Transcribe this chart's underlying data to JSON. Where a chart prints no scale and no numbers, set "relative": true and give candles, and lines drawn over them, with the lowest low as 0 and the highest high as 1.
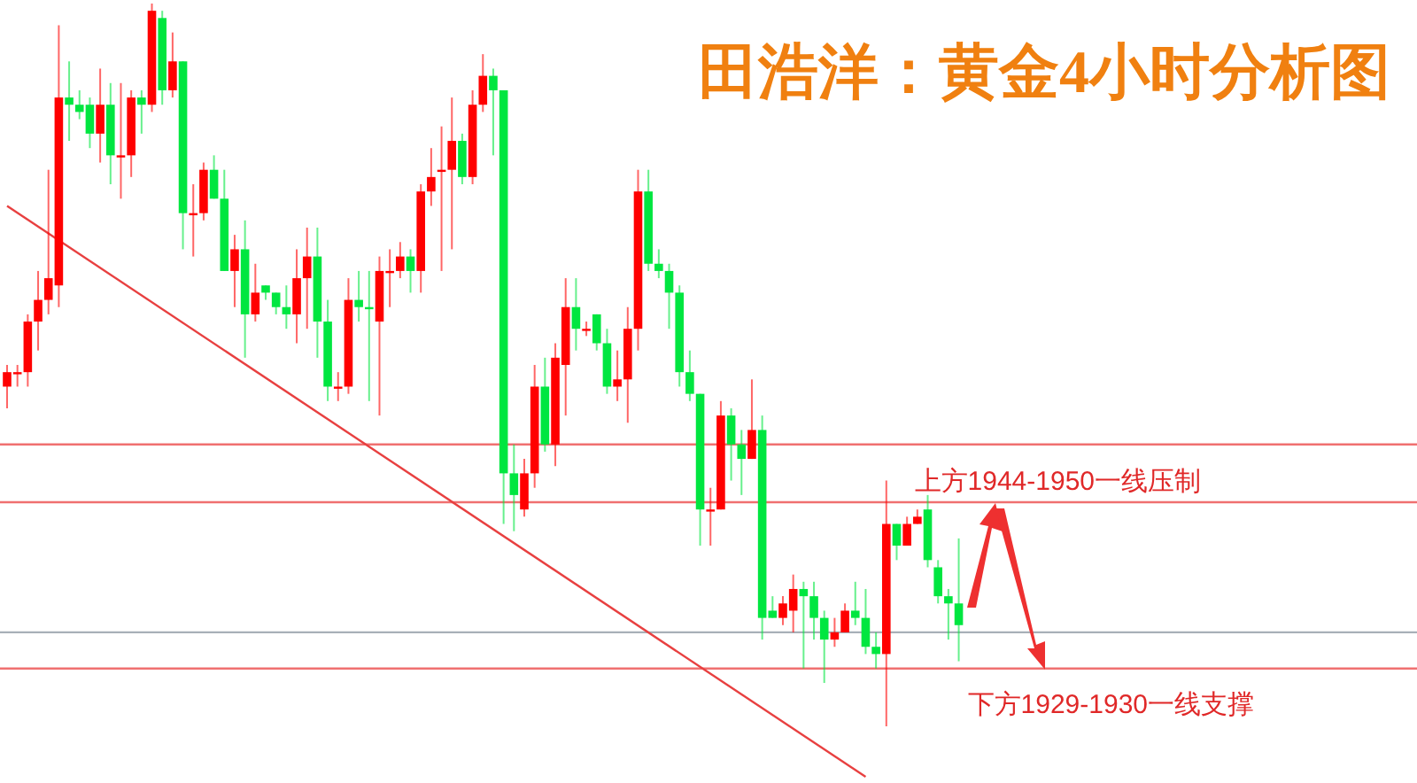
{
  "chart_data": {
    "type": "candlestick",
    "title": "田浩洋：黄金4小时分析图",
    "relative": true,
    "categories": [
      null,
      null,
      null,
      null,
      null,
      null,
      null,
      null,
      null,
      null,
      null,
      null,
      null,
      null,
      null,
      null,
      null,
      null,
      null,
      null,
      null,
      null,
      null,
      null,
      null,
      null,
      null,
      null,
      null,
      null,
      null,
      null,
      null,
      null,
      null,
      null,
      null,
      null,
      null,
      null,
      null,
      null,
      null,
      null,
      null,
      null,
      null,
      null,
      null,
      null,
      null,
      null,
      null,
      null,
      null,
      null,
      null,
      null,
      null,
      null,
      null,
      null,
      null,
      null,
      null,
      null,
      null,
      null,
      null,
      null,
      null,
      null,
      null,
      null,
      null,
      null,
      null,
      null,
      null,
      null,
      null,
      null,
      null,
      null,
      null,
      null,
      null,
      null,
      null,
      null,
      null,
      null,
      null
    ],
    "ohlc": [
      [
        0.47,
        0.5,
        0.44,
        0.49
      ],
      [
        0.49,
        0.5,
        0.47,
        0.49
      ],
      [
        0.49,
        0.57,
        0.47,
        0.56
      ],
      [
        0.56,
        0.63,
        0.52,
        0.59
      ],
      [
        0.59,
        0.77,
        0.57,
        0.62
      ],
      [
        0.61,
        0.97,
        0.58,
        0.87
      ],
      [
        0.87,
        0.92,
        0.81,
        0.86
      ],
      [
        0.86,
        0.88,
        0.84,
        0.85
      ],
      [
        0.86,
        0.87,
        0.8,
        0.82
      ],
      [
        0.82,
        0.91,
        0.78,
        0.86
      ],
      [
        0.86,
        0.89,
        0.75,
        0.79
      ],
      [
        0.79,
        0.89,
        0.73,
        0.79
      ],
      [
        0.79,
        0.88,
        0.76,
        0.87
      ],
      [
        0.87,
        0.88,
        0.82,
        0.86
      ],
      [
        0.86,
        1.0,
        0.85,
        0.99
      ],
      [
        0.98,
        0.99,
        0.86,
        0.88
      ],
      [
        0.88,
        0.96,
        0.87,
        0.92
      ],
      [
        0.92,
        0.92,
        0.66,
        0.71
      ],
      [
        0.71,
        0.75,
        0.65,
        0.71
      ],
      [
        0.71,
        0.78,
        0.7,
        0.77
      ],
      [
        0.77,
        0.79,
        0.73,
        0.73
      ],
      [
        0.73,
        0.77,
        0.63,
        0.63
      ],
      [
        0.63,
        0.68,
        0.58,
        0.66
      ],
      [
        0.66,
        0.7,
        0.51,
        0.57
      ],
      [
        0.57,
        0.64,
        0.56,
        0.6
      ],
      [
        0.61,
        0.61,
        0.59,
        0.6
      ],
      [
        0.6,
        0.6,
        0.57,
        0.58
      ],
      [
        0.58,
        0.61,
        0.55,
        0.57
      ],
      [
        0.57,
        0.66,
        0.53,
        0.62
      ],
      [
        0.62,
        0.69,
        0.55,
        0.65
      ],
      [
        0.65,
        0.69,
        0.51,
        0.56
      ],
      [
        0.56,
        0.59,
        0.45,
        0.47
      ],
      [
        0.47,
        0.49,
        0.45,
        0.47
      ],
      [
        0.47,
        0.62,
        0.46,
        0.59
      ],
      [
        0.59,
        0.63,
        0.56,
        0.58
      ],
      [
        0.58,
        0.63,
        0.45,
        0.58
      ],
      [
        0.56,
        0.65,
        0.43,
        0.63
      ],
      [
        0.63,
        0.66,
        0.58,
        0.63
      ],
      [
        0.63,
        0.67,
        0.62,
        0.65
      ],
      [
        0.65,
        0.66,
        0.6,
        0.63
      ],
      [
        0.63,
        0.75,
        0.6,
        0.74
      ],
      [
        0.74,
        0.8,
        0.72,
        0.76
      ],
      [
        0.77,
        0.83,
        0.63,
        0.77
      ],
      [
        0.77,
        0.87,
        0.66,
        0.81
      ],
      [
        0.81,
        0.82,
        0.75,
        0.76
      ],
      [
        0.76,
        0.88,
        0.75,
        0.86
      ],
      [
        0.86,
        0.93,
        0.85,
        0.9
      ],
      [
        0.9,
        0.91,
        0.79,
        0.88
      ],
      [
        0.88,
        0.88,
        0.28,
        0.35
      ],
      [
        0.35,
        0.39,
        0.27,
        0.32
      ],
      [
        0.3,
        0.37,
        0.29,
        0.35
      ],
      [
        0.35,
        0.5,
        0.33,
        0.47
      ],
      [
        0.47,
        0.51,
        0.38,
        0.39
      ],
      [
        0.39,
        0.53,
        0.36,
        0.51
      ],
      [
        0.5,
        0.62,
        0.43,
        0.58
      ],
      [
        0.58,
        0.62,
        0.52,
        0.55
      ],
      [
        0.55,
        0.56,
        0.54,
        0.55
      ],
      [
        0.57,
        0.57,
        0.52,
        0.53
      ],
      [
        0.53,
        0.55,
        0.46,
        0.47
      ],
      [
        0.47,
        0.52,
        0.45,
        0.48
      ],
      [
        0.48,
        0.58,
        0.42,
        0.55
      ],
      [
        0.55,
        0.77,
        0.52,
        0.74
      ],
      [
        0.74,
        0.77,
        0.63,
        0.64
      ],
      [
        0.64,
        0.66,
        0.62,
        0.63
      ],
      [
        0.63,
        0.64,
        0.55,
        0.6
      ],
      [
        0.6,
        0.61,
        0.47,
        0.49
      ],
      [
        0.49,
        0.52,
        0.45,
        0.46
      ],
      [
        0.46,
        0.46,
        0.25,
        0.3
      ],
      [
        0.3,
        0.33,
        0.25,
        0.3
      ],
      [
        0.3,
        0.45,
        0.3,
        0.43
      ],
      [
        0.43,
        0.44,
        0.34,
        0.39
      ],
      [
        0.39,
        0.41,
        0.32,
        0.37
      ],
      [
        0.37,
        0.48,
        0.37,
        0.41
      ],
      [
        0.41,
        0.43,
        0.12,
        0.15
      ],
      [
        0.16,
        0.18,
        0.15,
        0.15
      ],
      [
        0.15,
        0.18,
        0.14,
        0.17
      ],
      [
        0.16,
        0.21,
        0.13,
        0.19
      ],
      [
        0.19,
        0.2,
        0.08,
        0.18
      ],
      [
        0.18,
        0.2,
        0.12,
        0.15
      ],
      [
        0.15,
        0.16,
        0.06,
        0.12
      ],
      [
        0.12,
        0.15,
        0.11,
        0.13
      ],
      [
        0.13,
        0.17,
        0.13,
        0.16
      ],
      [
        0.16,
        0.2,
        0.14,
        0.15
      ],
      [
        0.15,
        0.19,
        0.1,
        0.11
      ],
      [
        0.11,
        0.13,
        0.08,
        0.1
      ],
      [
        0.1,
        0.34,
        0.0,
        0.28
      ],
      [
        0.28,
        0.28,
        0.23,
        0.25
      ],
      [
        0.25,
        0.29,
        0.25,
        0.28
      ],
      [
        0.28,
        0.3,
        0.28,
        0.29
      ],
      [
        0.3,
        0.32,
        0.22,
        0.23
      ],
      [
        0.22,
        0.23,
        0.17,
        0.18
      ],
      [
        0.18,
        0.19,
        0.12,
        0.17
      ],
      [
        0.17,
        0.26,
        0.09,
        0.14
      ]
    ],
    "colors": [
      "#ff0000",
      "#ff0000",
      "#ff0000",
      "#ff0000",
      "#ff0000",
      "#ff0000",
      "#00e640",
      "#00e640",
      "#00e640",
      "#ff0000",
      "#00e640",
      "#ff0000",
      "#ff0000",
      "#00e640",
      "#ff0000",
      "#00e640",
      "#ff0000",
      "#00e640",
      "#ff0000",
      "#ff0000",
      "#00e640",
      "#00e640",
      "#ff0000",
      "#00e640",
      "#ff0000",
      "#00e640",
      "#00e640",
      "#00e640",
      "#ff0000",
      "#ff0000",
      "#00e640",
      "#00e640",
      "#ff0000",
      "#ff0000",
      "#00e640",
      "#00e640",
      "#ff0000",
      "#ff0000",
      "#ff0000",
      "#00e640",
      "#ff0000",
      "#ff0000",
      "#ff0000",
      "#ff0000",
      "#00e640",
      "#ff0000",
      "#ff0000",
      "#00e640",
      "#00e640",
      "#00e640",
      "#ff0000",
      "#ff0000",
      "#00e640",
      "#ff0000",
      "#ff0000",
      "#00e640",
      "#ff0000",
      "#00e640",
      "#00e640",
      "#ff0000",
      "#ff0000",
      "#ff0000",
      "#00e640",
      "#00e640",
      "#00e640",
      "#00e640",
      "#00e640",
      "#00e640",
      "#ff0000",
      "#ff0000",
      "#00e640",
      "#00e640",
      "#ff0000",
      "#00e640",
      "#00e640",
      "#ff0000",
      "#ff0000",
      "#00e640",
      "#00e640",
      "#00e640",
      "#ff0000",
      "#ff0000",
      "#00e640",
      "#00e640",
      "#00e640",
      "#ff0000",
      "#00e640",
      "#ff0000",
      "#ff0000",
      "#00e640",
      "#00e640",
      "#00e640",
      "#00e640"
    ],
    "ref_lines": [
      {
        "axis": "y",
        "value": 0.39,
        "color": "#f07070"
      },
      {
        "axis": "y",
        "value": 0.31,
        "color": "#f07070",
        "label": "上方1944-1950一线压制"
      },
      {
        "axis": "y",
        "value": 0.13,
        "color": "#a8b0b8"
      },
      {
        "axis": "y",
        "value": 0.08,
        "color": "#f07070",
        "label": "下方1929-1930一线支撑"
      }
    ],
    "series": [
      {
        "type": "line",
        "color": "#e84040",
        "values": [
          0.72,
          null,
          null,
          null,
          null,
          null,
          null,
          null,
          null,
          null,
          null,
          null,
          null,
          null,
          null,
          null,
          null,
          null,
          null,
          null,
          null,
          null,
          null,
          null,
          null,
          null,
          null,
          null,
          null,
          null,
          null,
          null,
          null,
          null,
          null,
          null,
          null,
          null,
          null,
          null,
          null,
          null,
          null,
          null,
          null,
          null,
          null,
          null,
          null,
          null,
          null,
          null,
          null,
          null,
          null,
          null,
          null,
          null,
          null,
          null,
          null,
          null,
          null,
          null,
          null,
          null,
          null,
          null,
          null,
          null,
          null,
          null,
          null,
          null,
          null,
          null,
          null,
          null,
          null,
          null,
          null,
          null,
          null,
          -0.07,
          null,
          null,
          null,
          null,
          null,
          null,
          null,
          null,
          null
        ]
      }
    ]
  }
}
